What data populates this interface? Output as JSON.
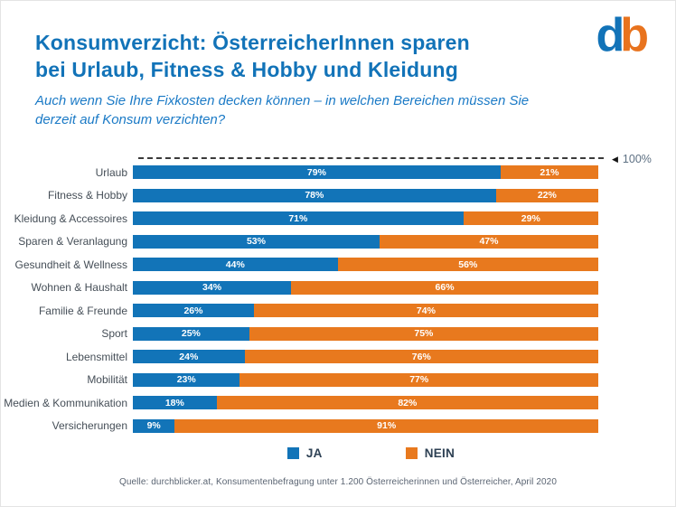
{
  "header": {
    "title_lines": [
      "Konsumverzicht: ÖsterreicherInnen sparen",
      "bei Urlaub, Fitness & Hobby und Kleidung"
    ],
    "subtitle_lines": [
      "Auch wenn Sie Ihre Fixkosten decken können – in welchen Bereichen müssen Sie",
      "derzeit auf Konsum verzichten?"
    ]
  },
  "logo": {
    "letter_d": "d",
    "letter_b": "b",
    "color_d": "#1273b8",
    "color_b": "#e8731e"
  },
  "chart_data": {
    "type": "bar",
    "orientation": "horizontal",
    "stacked": true,
    "title": "Konsumverzicht: ÖsterreicherInnen sparen bei Urlaub, Fitness & Hobby und Kleidung",
    "subtitle": "Auch wenn Sie Ihre Fixkosten decken können – in welchen Bereichen müssen Sie derzeit auf Konsum verzichten?",
    "unit": "%",
    "xlim": [
      0,
      100
    ],
    "grid": false,
    "value_labels": "inside-center",
    "legend_position": "bottom",
    "categories": [
      "Urlaub",
      "Fitness & Hobby",
      "Kleidung & Accessoires",
      "Sparen & Veranlagung",
      "Gesundheit & Wellness",
      "Wohnen & Haushalt",
      "Familie & Freunde",
      "Sport",
      "Lebensmittel",
      "Mobilität",
      "Medien & Kommunikation",
      "Versicherungen"
    ],
    "series": [
      {
        "name": "JA",
        "color": "#1274b8",
        "values": [
          79,
          78,
          71,
          53,
          44,
          34,
          26,
          25,
          24,
          23,
          18,
          9
        ]
      },
      {
        "name": "NEIN",
        "color": "#e8791e",
        "values": [
          21,
          22,
          29,
          47,
          56,
          66,
          74,
          75,
          76,
          77,
          82,
          91
        ]
      }
    ],
    "reference_line": {
      "value": 100,
      "label": "100%",
      "marker_icon": "◀",
      "style": "dashed"
    }
  },
  "footer": {
    "source": "Quelle: durchblicker.at, Konsumentenbefragung unter 1.200 Österreicherinnen und Österreicher, April 2020"
  }
}
